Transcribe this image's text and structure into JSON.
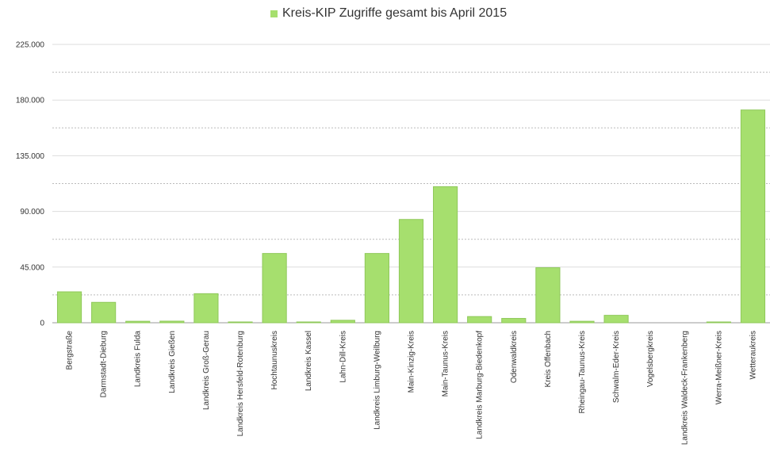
{
  "chart_data": {
    "type": "bar",
    "title": "",
    "xlabel": "",
    "ylabel": "",
    "ylim": [
      0,
      225000
    ],
    "yticks": [
      "0",
      "45.000",
      "90.000",
      "135.000",
      "180.000",
      "225.000"
    ],
    "grid": true,
    "legend_placement": "top-center",
    "categories": [
      "Bergstraße",
      "Darmstadt-Dieburg",
      "Landkreis Fulda",
      "Landkreis Gießen",
      "Landkreis Groß-Gerau",
      "Landkreis Hersfeld-Rotenburg",
      "Hochtaunuskreis",
      "Landkreis Kassel",
      "Lahn-Dill-Kreis",
      "Landkreis Limburg-Weilburg",
      "Main-Kinzig-Kreis",
      "Main-Taunus-Kreis",
      "Landkreis Marburg-Biedenkopf",
      "Odenwaldkreis",
      "Kreis Offenbach",
      "Rheingau-Taunus-Kreis",
      "Schwalm-Eder-Kreis",
      "Vogelsbergkreis",
      "Landkreis Waldeck-Frankenberg",
      "Werra-Meißner-Kreis",
      "Wetteraukreis"
    ],
    "series": [
      {
        "name": "Kreis-KIP Zugriffe gesamt bis April 2015",
        "color": "#a6df6e",
        "values": [
          25000,
          16500,
          1200,
          1300,
          23500,
          300,
          56000,
          300,
          2000,
          56000,
          83500,
          110000,
          5000,
          3500,
          44500,
          1200,
          6000,
          0,
          0,
          300,
          172000
        ]
      }
    ]
  }
}
